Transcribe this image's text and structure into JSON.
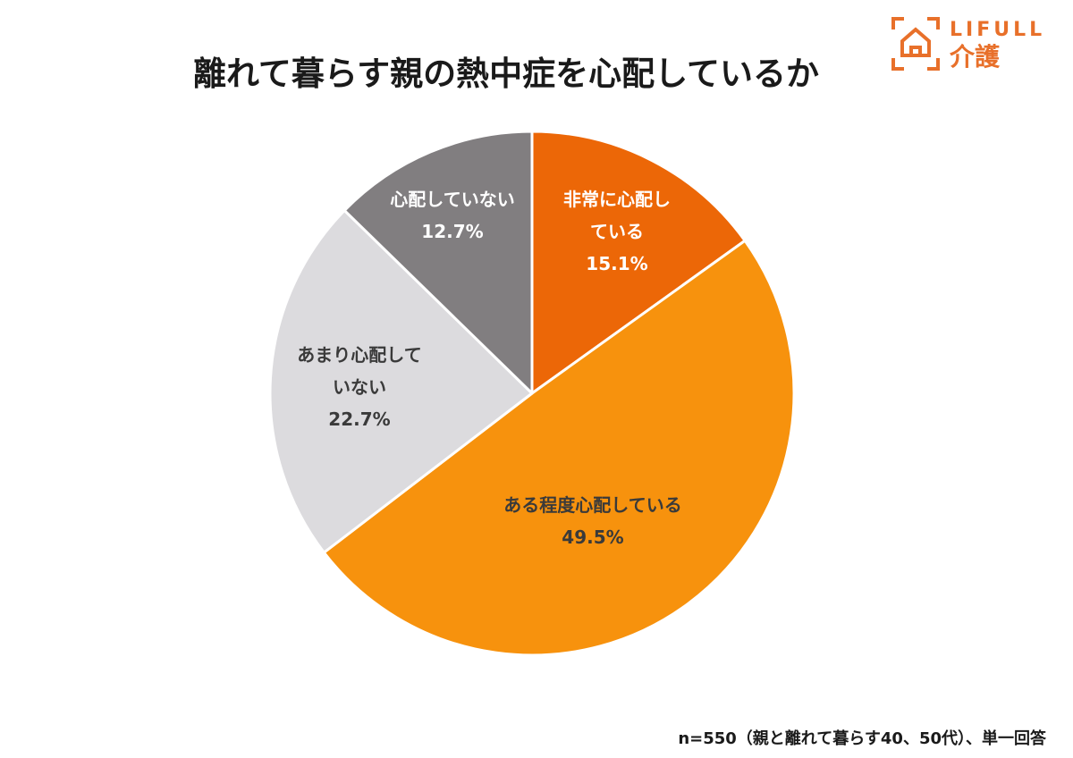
{
  "logo": {
    "text_en": "LIFULL",
    "text_jp": "介護",
    "color": "#e8702a"
  },
  "chart_data": {
    "type": "pie",
    "title": "離れて暮らす親の熱中症を心配しているか",
    "slices": [
      {
        "label_lines": [
          "非常に心配し",
          "ている"
        ],
        "value": 15.1,
        "value_text": "15.1%",
        "color": "#ec6707",
        "text_color": "#ffffff"
      },
      {
        "label_lines": [
          "ある程度心配している"
        ],
        "value": 49.5,
        "value_text": "49.5%",
        "color": "#f7920d",
        "text_color": "#3a3a3a"
      },
      {
        "label_lines": [
          "あまり心配して",
          "いない"
        ],
        "value": 22.7,
        "value_text": "22.7%",
        "color": "#dcdbde",
        "text_color": "#3a3a3a"
      },
      {
        "label_lines": [
          "心配していない"
        ],
        "value": 12.7,
        "value_text": "12.7%",
        "color": "#817e80",
        "text_color": "#ffffff"
      }
    ],
    "start": "12 o'clock",
    "direction": "clockwise"
  },
  "footnote": "n=550（親と離れて暮らす40、50代）、単一回答"
}
